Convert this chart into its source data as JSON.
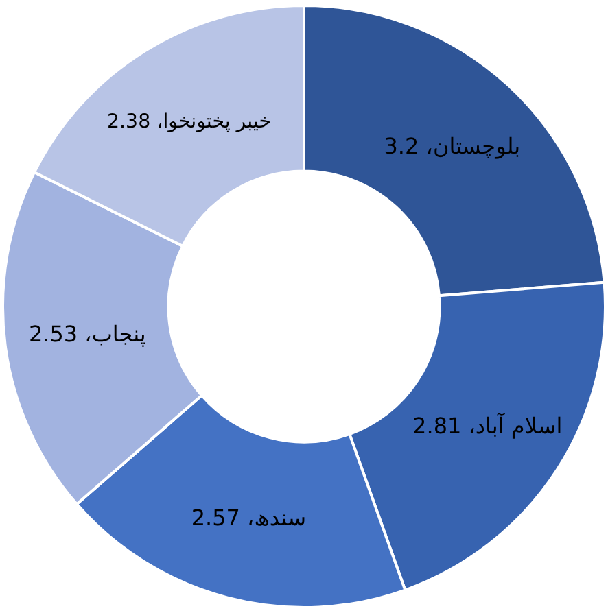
{
  "chart_data": {
    "type": "donut",
    "categories": [
      "بلوچستان، 3.2",
      "اسلام آباد، 2.81",
      "سندھ، 2.57",
      "پنجاب، 2.53",
      "خیبر پختونخوا، 2.38"
    ],
    "values": [
      3.2,
      2.81,
      2.57,
      2.53,
      2.38
    ],
    "colors": [
      "#2f5597",
      "#3763b0",
      "#4472c4",
      "#a2b3e0",
      "#b8c4e6"
    ],
    "legend": false
  }
}
